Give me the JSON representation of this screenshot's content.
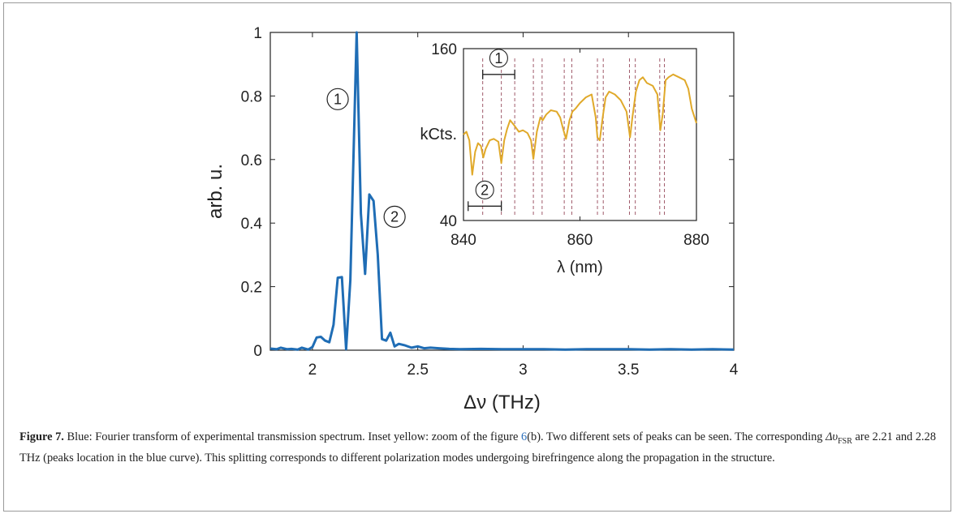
{
  "caption": {
    "figure_label": "Figure 7.",
    "part1": " Blue: Fourier transform of experimental transmission spectrum. Inset yellow: zoom of the figure ",
    "ref": "6",
    "part2": "(b). Two different sets of peaks can be seen. The corresponding ",
    "delta_symbol": "Δυ",
    "fsr_sub": "FSR",
    "part3": " are 2.21  and 2.28 THz (peaks location in the blue curve). This splitting corresponds to different polarization modes undergoing birefringence along the propagation in the structure."
  },
  "chart_data": [
    {
      "type": "line",
      "xlabel": "Δν (THz)",
      "ylabel": "arb. u.",
      "xlim": [
        1.8,
        4.0
      ],
      "ylim": [
        0,
        1.0
      ],
      "xticks": [
        2,
        2.5,
        3,
        3.5,
        4
      ],
      "xtick_labels": [
        "2",
        "2.5",
        "3",
        "3.5",
        "4"
      ],
      "yticks": [
        0,
        0.2,
        0.4,
        0.6,
        0.8,
        1
      ],
      "ytick_labels": [
        "0",
        "0.2",
        "0.4",
        "0.6",
        "0.8",
        "1"
      ],
      "grid": false,
      "color": "#1f6db5",
      "annotations": [
        {
          "text": "1",
          "x": 2.12,
          "y": 0.79
        },
        {
          "text": "2",
          "x": 2.39,
          "y": 0.42
        }
      ],
      "x": [
        1.8,
        1.83,
        1.85,
        1.88,
        1.9,
        1.93,
        1.95,
        1.98,
        2.0,
        2.02,
        2.04,
        2.06,
        2.08,
        2.1,
        2.12,
        2.14,
        2.16,
        2.18,
        2.21,
        2.23,
        2.25,
        2.27,
        2.29,
        2.31,
        2.33,
        2.35,
        2.37,
        2.39,
        2.41,
        2.44,
        2.47,
        2.5,
        2.53,
        2.56,
        2.6,
        2.65,
        2.7,
        2.8,
        2.9,
        3.0,
        3.1,
        3.2,
        3.3,
        3.4,
        3.5,
        3.6,
        3.7,
        3.8,
        3.9,
        4.0
      ],
      "y": [
        0.005,
        0.003,
        0.008,
        0.003,
        0.004,
        0.002,
        0.008,
        0.002,
        0.01,
        0.04,
        0.042,
        0.03,
        0.025,
        0.08,
        0.228,
        0.23,
        0.003,
        0.22,
        1.0,
        0.43,
        0.24,
        0.49,
        0.47,
        0.3,
        0.035,
        0.03,
        0.055,
        0.012,
        0.02,
        0.015,
        0.008,
        0.012,
        0.006,
        0.008,
        0.006,
        0.004,
        0.003,
        0.004,
        0.003,
        0.003,
        0.003,
        0.002,
        0.003,
        0.003,
        0.003,
        0.002,
        0.003,
        0.002,
        0.003,
        0.002
      ]
    },
    {
      "type": "line",
      "xlabel": "λ (nm)",
      "ylabel": "kCts.",
      "xlim": [
        840,
        880
      ],
      "ylim": [
        40,
        160
      ],
      "xticks": [
        840,
        860,
        880
      ],
      "xtick_labels": [
        "840",
        "860",
        "880"
      ],
      "yticks": [
        40,
        160
      ],
      "ytick_labels": [
        "40",
        "160"
      ],
      "grid": false,
      "color": "#e0a92a",
      "dashed_lines_color": "#a05a6a",
      "dashed_lines_x": [
        843.3,
        848.8,
        846.5,
        852.0,
        853.5,
        857.3,
        858.6,
        863.0,
        864.0,
        868.5,
        869.5,
        873.7,
        874.5
      ],
      "brackets": [
        {
          "label": "1",
          "x1": 843.3,
          "x2": 848.8,
          "y": 142
        },
        {
          "label": "2",
          "x1": 840.8,
          "x2": 846.5,
          "y": 50
        }
      ],
      "x": [
        840.0,
        840.5,
        841.0,
        841.5,
        842.0,
        842.5,
        843.0,
        843.4,
        843.8,
        844.5,
        845.2,
        846.0,
        846.5,
        847.0,
        847.5,
        848.0,
        848.8,
        849.5,
        850.2,
        851.0,
        851.6,
        852.0,
        852.6,
        853.2,
        853.6,
        854.2,
        855.0,
        856.0,
        856.6,
        857.1,
        857.6,
        858.2,
        858.7,
        859.2,
        860.0,
        861.0,
        862.0,
        862.7,
        863.0,
        863.4,
        863.9,
        864.4,
        865.0,
        866.0,
        867.0,
        868.0,
        868.6,
        869.0,
        869.6,
        870.2,
        870.8,
        871.5,
        872.5,
        873.3,
        873.8,
        874.2,
        874.7,
        875.2,
        876.0,
        877.0,
        878.0,
        878.6,
        879.2,
        880.0
      ],
      "y": [
        100,
        102,
        96,
        72,
        88,
        94,
        92,
        84,
        90,
        96,
        97,
        95,
        80,
        96,
        104,
        110,
        106,
        102,
        103,
        101,
        96,
        83,
        102,
        112,
        110,
        114,
        117,
        116,
        112,
        104,
        97,
        110,
        116,
        118,
        122,
        126,
        128,
        112,
        98,
        96,
        112,
        126,
        130,
        128,
        124,
        116,
        98,
        112,
        130,
        138,
        140,
        136,
        134,
        128,
        103,
        114,
        138,
        140,
        142,
        140,
        138,
        132,
        118,
        108
      ]
    }
  ]
}
